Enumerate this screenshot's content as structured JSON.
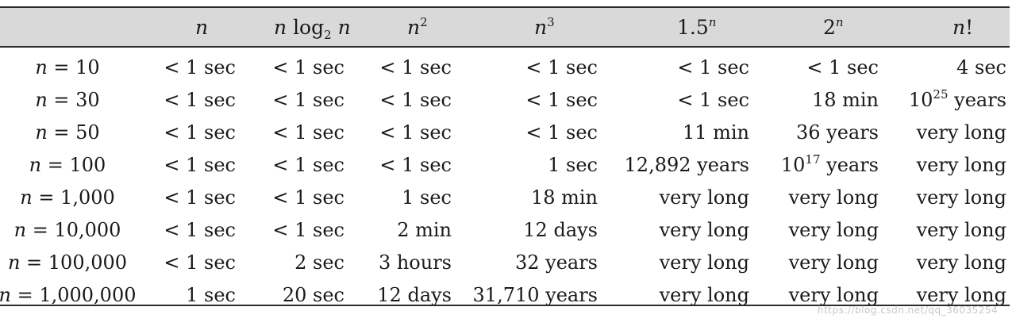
{
  "headers": {
    "h0": "",
    "h1_var": "n",
    "h2_var": "n",
    "h2_log": "log",
    "h2_sub": "2",
    "h2_var2": "n",
    "h3_base": "n",
    "h3_exp": "2",
    "h4_base": "n",
    "h4_exp": "3",
    "h5_base": "1.5",
    "h5_exp": "n",
    "h6_base": "2",
    "h6_exp": "n",
    "h7_var": "n",
    "h7_op": "!"
  },
  "rows": [
    {
      "label": "n = 10",
      "c1": "< 1 sec",
      "c2": "< 1 sec",
      "c3": "< 1 sec",
      "c4": "< 1 sec",
      "c5": "< 1 sec",
      "c6": "< 1 sec",
      "c7": "4 sec"
    },
    {
      "label": "n = 30",
      "c1": "< 1 sec",
      "c2": "< 1 sec",
      "c3": "< 1 sec",
      "c4": "< 1 sec",
      "c5": "< 1 sec",
      "c6": "18 min",
      "c7_base": "10",
      "c7_exp": "25",
      "c7_unit": " years"
    },
    {
      "label": "n = 50",
      "c1": "< 1 sec",
      "c2": "< 1 sec",
      "c3": "< 1 sec",
      "c4": "< 1 sec",
      "c5": "11 min",
      "c6": "36 years",
      "c7": "very long"
    },
    {
      "label": "n = 100",
      "c1": "< 1 sec",
      "c2": "< 1 sec",
      "c3": "< 1 sec",
      "c4": "1 sec",
      "c5": "12,892 years",
      "c6_base": "10",
      "c6_exp": "17",
      "c6_unit": " years",
      "c7": "very long"
    },
    {
      "label": "n = 1,000",
      "c1": "< 1 sec",
      "c2": "< 1 sec",
      "c3": "1 sec",
      "c4": "18 min",
      "c5": "very long",
      "c6": "very long",
      "c7": "very long"
    },
    {
      "label": "n = 10,000",
      "c1": "< 1 sec",
      "c2": "< 1 sec",
      "c3": "2 min",
      "c4": "12 days",
      "c5": "very long",
      "c6": "very long",
      "c7": "very long"
    },
    {
      "label": "n = 100,000",
      "c1": "< 1 sec",
      "c2": "2 sec",
      "c3": "3 hours",
      "c4": "32 years",
      "c5": "very long",
      "c6": "very long",
      "c7": "very long"
    },
    {
      "label": "n = 1,000,000",
      "c1": "1 sec",
      "c2": "20 sec",
      "c3": "12 days",
      "c4": "31,710 years",
      "c5": "very long",
      "c6": "very long",
      "c7": "very long"
    }
  ],
  "watermark": "https://blog.csdn.net/qq_36035254"
}
